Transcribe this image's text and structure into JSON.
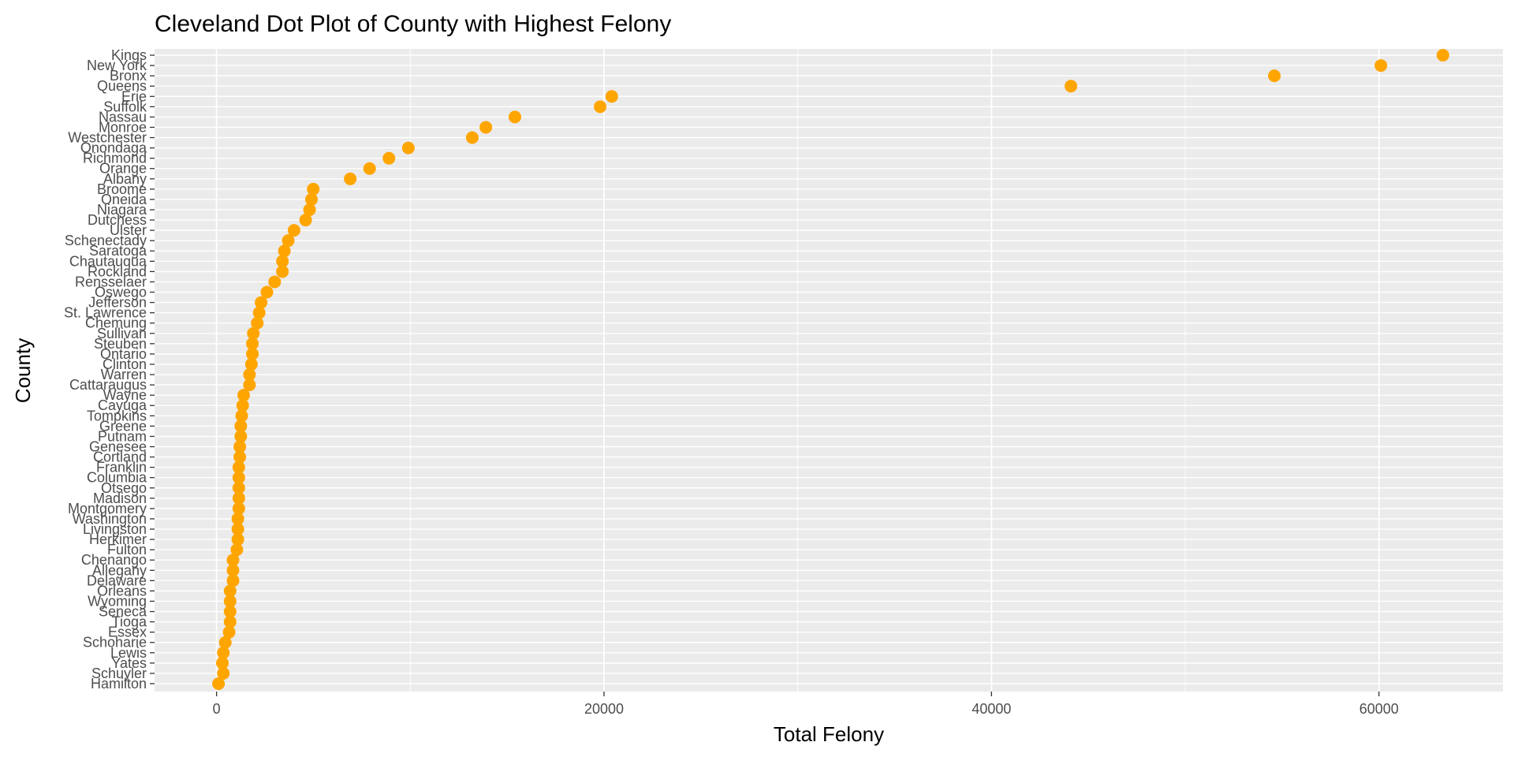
{
  "chart_data": {
    "type": "scatter",
    "title": "Cleveland Dot Plot of County with Highest Felony",
    "xlabel": "Total Felony",
    "ylabel": "County",
    "xlim": [
      -3200,
      66400
    ],
    "x_ticks": [
      0,
      20000,
      40000,
      60000
    ],
    "x_tick_labels": [
      "0",
      "20000",
      "40000",
      "60000"
    ],
    "grid": true,
    "legend": "none",
    "point_color": "#FFA500",
    "panel_color": "#EBEBEB",
    "grid_color": "#FFFFFF",
    "categories": [
      "Kings",
      "New York",
      "Bronx",
      "Queens",
      "Erie",
      "Suffolk",
      "Nassau",
      "Monroe",
      "Westchester",
      "Onondaga",
      "Richmond",
      "Orange",
      "Albany",
      "Broome",
      "Oneida",
      "Niagara",
      "Dutchess",
      "Ulster",
      "Schenectady",
      "Saratoga",
      "Chautauqua",
      "Rockland",
      "Rensselaer",
      "Oswego",
      "Jefferson",
      "St. Lawrence",
      "Chemung",
      "Sullivan",
      "Steuben",
      "Ontario",
      "Clinton",
      "Warren",
      "Cattaraugus",
      "Wayne",
      "Cayuga",
      "Tompkins",
      "Greene",
      "Putnam",
      "Genesee",
      "Cortland",
      "Franklin",
      "Columbia",
      "Otsego",
      "Madison",
      "Montgomery",
      "Washington",
      "Livingston",
      "Herkimer",
      "Fulton",
      "Chenango",
      "Allegany",
      "Delaware",
      "Orleans",
      "Wyoming",
      "Seneca",
      "Tioga",
      "Essex",
      "Schoharie",
      "Lewis",
      "Yates",
      "Schuyler",
      "Hamilton"
    ],
    "values": [
      63300,
      60100,
      54600,
      44100,
      20400,
      19800,
      15400,
      13900,
      13200,
      9900,
      8900,
      7900,
      6900,
      4990,
      4900,
      4800,
      4600,
      4000,
      3700,
      3500,
      3400,
      3400,
      3000,
      2600,
      2300,
      2200,
      2100,
      1900,
      1850,
      1850,
      1800,
      1700,
      1700,
      1400,
      1350,
      1300,
      1250,
      1250,
      1200,
      1200,
      1150,
      1150,
      1150,
      1150,
      1150,
      1100,
      1100,
      1100,
      1050,
      850,
      850,
      850,
      700,
      700,
      700,
      700,
      650,
      450,
      350,
      300,
      350,
      100
    ]
  }
}
